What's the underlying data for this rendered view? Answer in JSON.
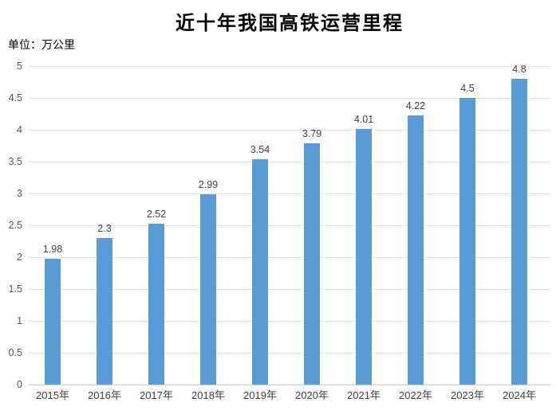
{
  "chart_data": {
    "type": "bar",
    "title": "近十年我国高铁运营里程",
    "unit_label": "单位：万公里",
    "categories": [
      "2015年",
      "2016年",
      "2017年",
      "2018年",
      "2019年",
      "2020年",
      "2021年",
      "2022年",
      "2023年",
      "2024年"
    ],
    "values": [
      1.98,
      2.3,
      2.52,
      2.99,
      3.54,
      3.79,
      4.01,
      4.22,
      4.5,
      4.8
    ],
    "value_labels": [
      "1.98",
      "2.3",
      "2.52",
      "2.99",
      "3.54",
      "3.79",
      "4.01",
      "4.22",
      "4.5",
      "4.8"
    ],
    "xlabel": "",
    "ylabel": "",
    "ylim": [
      0,
      5
    ],
    "ytick_step": 0.5,
    "ytick_labels": [
      "0",
      "0.5",
      "1",
      "1.5",
      "2",
      "2.5",
      "3",
      "3.5",
      "4",
      "4.5",
      "5"
    ],
    "grid": true,
    "legend": "none",
    "colors": {
      "bar": "#5B9BD5",
      "gridline": "#E2E2E2",
      "axis_line": "#C9C9C9",
      "title_text": "#000000",
      "unit_text": "#000000",
      "value_label_text": "#404040",
      "x_tick_text": "#404040",
      "y_tick_text": "#555555",
      "background": "#FFFFFF"
    }
  }
}
